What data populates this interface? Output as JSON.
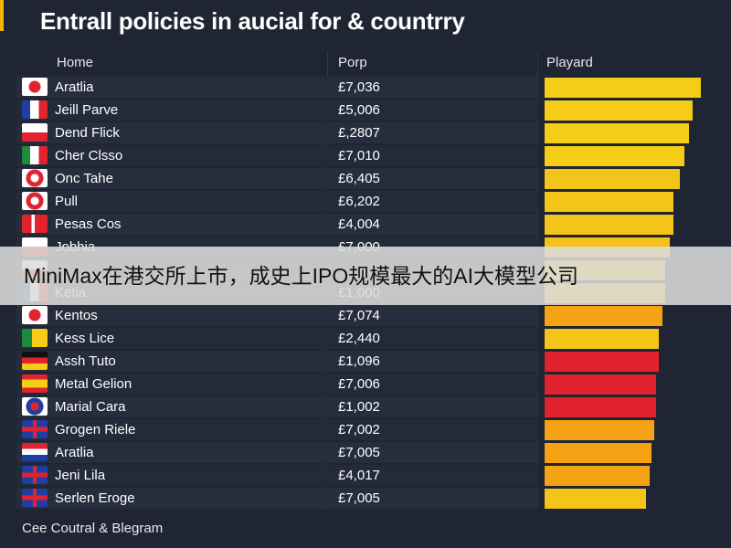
{
  "chart_data": {
    "type": "table",
    "title": "Entrall policies in aucial for & countrry",
    "columns": [
      "Home",
      "Porp",
      "Playard"
    ],
    "rows": [
      {
        "name": "Aratlia",
        "value": "£7,036",
        "bar": 0.98,
        "bar_color": "#f5cc16",
        "flag": "red-circle"
      },
      {
        "name": "Jeill Parve",
        "value": "£5,006",
        "bar": 0.93,
        "bar_color": "#f5cc16",
        "flag": "france"
      },
      {
        "name": "Dend Flick",
        "value": "£,2807",
        "bar": 0.91,
        "bar_color": "#f5cc16",
        "flag": "white-red"
      },
      {
        "name": "Cher Clsso",
        "value": "£7,010",
        "bar": 0.88,
        "bar_color": "#f5cc16",
        "flag": "italy"
      },
      {
        "name": "Onc Tahe",
        "value": "£6,405",
        "bar": 0.85,
        "bar_color": "#f5c418",
        "flag": "red-diamond"
      },
      {
        "name": "Pull",
        "value": "£6,202",
        "bar": 0.81,
        "bar_color": "#f5c418",
        "flag": "red-diamond"
      },
      {
        "name": "Pesas Cos",
        "value": "£4,004",
        "bar": 0.81,
        "bar_color": "#f5c418",
        "flag": "denmark"
      },
      {
        "name": "Jobhia",
        "value": "£7,000",
        "bar": 0.79,
        "bar_color": "#f5c018",
        "flag": "red-white"
      },
      {
        "name": "",
        "value": "",
        "bar": 0.76,
        "bar_color": "#f5c018",
        "flag": "red-white"
      },
      {
        "name": "Ketia",
        "value": "£1,000",
        "bar": 0.76,
        "bar_color": "#f5c018",
        "flag": "france"
      },
      {
        "name": "Kentos",
        "value": "£7,074",
        "bar": 0.74,
        "bar_color": "#f5a214",
        "flag": "red-circle"
      },
      {
        "name": "Kess Lice",
        "value": "£2,440",
        "bar": 0.72,
        "bar_color": "#f5c418",
        "flag": "green-yellow"
      },
      {
        "name": "Assh Tuto",
        "value": "£1,096",
        "bar": 0.72,
        "bar_color": "#e0232e",
        "flag": "germany"
      },
      {
        "name": "Metal Gelion",
        "value": "£7,006",
        "bar": 0.7,
        "bar_color": "#e0232e",
        "flag": "spain"
      },
      {
        "name": "Marial Cara",
        "value": "£1,002",
        "bar": 0.7,
        "bar_color": "#e0232e",
        "flag": "blue-circle"
      },
      {
        "name": "Grogen Riele",
        "value": "£7,002",
        "bar": 0.69,
        "bar_color": "#f5a214",
        "flag": "uk"
      },
      {
        "name": "Aratlia",
        "value": "£7,005",
        "bar": 0.67,
        "bar_color": "#f5a214",
        "flag": "red-blue"
      },
      {
        "name": "Jeni Lila",
        "value": "£4,017",
        "bar": 0.66,
        "bar_color": "#f5a214",
        "flag": "uk"
      },
      {
        "name": "Serlen Eroge",
        "value": "£7,005",
        "bar": 0.64,
        "bar_color": "#f5c418",
        "flag": "uk"
      }
    ],
    "footer": "Cee Coutral & Blegram"
  },
  "banner": {
    "text": "MiniMax在港交所上市，成史上IPO规模最大的AI大模型公司"
  },
  "colors": {
    "background": "#1f2533",
    "accent": "#f2b705",
    "bar_yellow": "#f5cc16",
    "bar_orange": "#f5a214",
    "bar_red": "#e0232e"
  }
}
